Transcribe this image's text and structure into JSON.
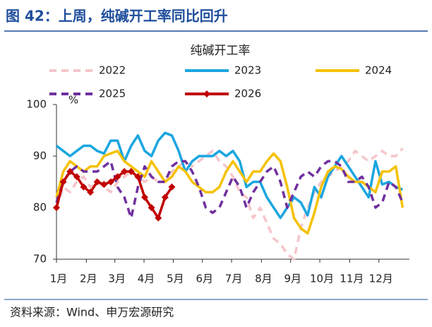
{
  "header": {
    "title": "图 42：上周，纯碱开工率同比回升"
  },
  "chart_data": {
    "type": "line",
    "title": "纯碱开工率",
    "ylabel": "%",
    "x": [
      1,
      2,
      3,
      4,
      5,
      6,
      7,
      8,
      9,
      10,
      11,
      12,
      13,
      14,
      15,
      16,
      17,
      18,
      19,
      20,
      21,
      22,
      23,
      24,
      25,
      26,
      27,
      28,
      29,
      30,
      31,
      32,
      33,
      34,
      35,
      36,
      37,
      38,
      39,
      40,
      41,
      42,
      43,
      44,
      45,
      46,
      47,
      48,
      49,
      50,
      51,
      52
    ],
    "xlim": [
      1,
      53
    ],
    "xticks": [
      {
        "value": 1,
        "label": "1月"
      },
      {
        "value": 5.4,
        "label": "2月"
      },
      {
        "value": 9.6,
        "label": "3月"
      },
      {
        "value": 13.9,
        "label": "4月"
      },
      {
        "value": 18.2,
        "label": "5月"
      },
      {
        "value": 22.5,
        "label": "6月"
      },
      {
        "value": 26.8,
        "label": "7月"
      },
      {
        "value": 31.2,
        "label": "8月"
      },
      {
        "value": 35.5,
        "label": "9月"
      },
      {
        "value": 39.8,
        "label": "10月"
      },
      {
        "value": 44.2,
        "label": "11月"
      },
      {
        "value": 48.5,
        "label": "12月"
      }
    ],
    "ylim": [
      70,
      100
    ],
    "yticks": [
      70,
      80,
      90,
      100
    ],
    "grid": false,
    "series": [
      {
        "name": "2022",
        "color": "#f5c6ca",
        "style": "dashed",
        "values": [
          80,
          84,
          83,
          85,
          86,
          84,
          85,
          84,
          83,
          85,
          86,
          87,
          86,
          85,
          86,
          85,
          85,
          87,
          88,
          89,
          88,
          89,
          90,
          91,
          89,
          88,
          86,
          83,
          82,
          78,
          80,
          77,
          74,
          73,
          71,
          70,
          76,
          80,
          83,
          85,
          86,
          87,
          88,
          89,
          91,
          90,
          89,
          90,
          91,
          90,
          90,
          91.5
        ]
      },
      {
        "name": "2023",
        "color": "#1ba6e0",
        "style": "solid",
        "values": [
          92,
          91,
          90,
          91,
          92,
          92,
          91,
          90.5,
          93,
          93,
          89,
          92,
          94,
          91,
          90,
          93,
          94.5,
          94,
          91,
          87,
          89,
          90,
          90,
          90,
          91,
          90,
          91,
          89,
          84,
          85,
          85,
          82,
          80,
          78,
          80,
          82,
          81,
          78.5,
          84,
          82,
          86,
          88,
          90,
          88,
          86,
          84,
          82,
          89,
          84.5,
          85,
          84,
          83.5
        ]
      },
      {
        "name": "2024",
        "color": "#f6c100",
        "style": "solid",
        "values": [
          82,
          87,
          89,
          88,
          87,
          88,
          88,
          90,
          90.5,
          91,
          89,
          88,
          87,
          86,
          89,
          87,
          85,
          86,
          88,
          87,
          85,
          84,
          83,
          83,
          84,
          87,
          89,
          87,
          85,
          87,
          87,
          89,
          90.5,
          89,
          84,
          78,
          76,
          75,
          79,
          84,
          87,
          88,
          87.5,
          86,
          85,
          85,
          84,
          83,
          87,
          87,
          88,
          80
        ]
      },
      {
        "name": "2025",
        "color": "#7030a0",
        "style": "dashed",
        "values": [
          81,
          85,
          87,
          88,
          87,
          87,
          87,
          88,
          89,
          84,
          82,
          78,
          84,
          88,
          86,
          85,
          85,
          88,
          89,
          89,
          87,
          84,
          80,
          79,
          80,
          83,
          86,
          84,
          80,
          83,
          85,
          87,
          88,
          85,
          80,
          83,
          86,
          87,
          86,
          88,
          89,
          89,
          88,
          85,
          85,
          86,
          84,
          80,
          81,
          85,
          84,
          81
        ]
      },
      {
        "name": "2026",
        "color": "#c00000",
        "style": "solid",
        "marker": "diamond",
        "values": [
          80,
          85,
          87,
          86,
          84,
          83,
          85,
          84.5,
          85,
          86,
          87,
          87,
          86,
          82,
          80,
          78,
          82,
          84,
          null,
          null,
          null,
          null,
          null,
          null,
          null,
          null,
          null,
          null,
          null,
          null,
          null,
          null,
          null,
          null,
          null,
          null,
          null,
          null,
          null,
          null,
          null,
          null,
          null,
          null,
          null,
          null,
          null,
          null,
          null,
          null,
          null,
          null
        ]
      }
    ]
  },
  "footer": {
    "source": "资料来源：Wind、申万宏源研究"
  }
}
